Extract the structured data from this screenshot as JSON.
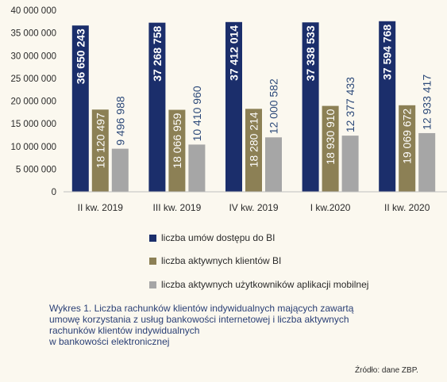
{
  "chart_data": {
    "type": "bar",
    "categories": [
      "II kw. 2019",
      "III kw. 2019",
      "IV kw. 2019",
      "I kw.2020",
      "II kw. 2020"
    ],
    "series": [
      {
        "name": "liczba umów dostępu do BI",
        "color": "#1b2e6b",
        "labelColor": "#ffffff",
        "values": [
          36650243,
          37268758,
          37412014,
          37338533,
          37594768
        ],
        "labels": [
          "36 650 243",
          "37 268 758",
          "37 412 014",
          "37 338 533",
          "37 594 768"
        ]
      },
      {
        "name": "liczba aktywnych klientów BI",
        "color": "#8c8055",
        "labelColor": "#ffffff",
        "values": [
          18120497,
          18066959,
          18280214,
          18930910,
          19069672
        ],
        "labels": [
          "18 120 497",
          "18 066 959",
          "18 280 214",
          "18 930 910",
          "19 069 672"
        ]
      },
      {
        "name": "liczba aktywnych użytkowników aplikacji mobilnej",
        "color": "#a6a6a6",
        "labelColor": "#2d4a7a",
        "values": [
          9496988,
          10410960,
          12000582,
          12377433,
          12933417
        ],
        "labels": [
          "9 496 988",
          "10 410 960",
          "12 000 582",
          "12 377 433",
          "12 933 417"
        ]
      }
    ],
    "ylim": [
      0,
      40000000
    ],
    "yticks": [
      0,
      5000000,
      10000000,
      15000000,
      20000000,
      25000000,
      30000000,
      35000000,
      40000000
    ],
    "ytick_labels": [
      "0",
      "5 000 000",
      "10 000 000",
      "15 000 000",
      "20 000 000",
      "25 000 000",
      "30 000 000",
      "35 000 000",
      "40 000 000"
    ],
    "grid": false,
    "legend_position": "below"
  },
  "caption": {
    "lines": [
      "Wykres 1. Liczba rachunków klientów indywidualnych mających zawartą",
      "umowę korzystania z usług bankowości internetowej  i liczba aktywnych",
      "rachunków klientów indywidualnych",
      "w bankowości elektronicznej"
    ]
  },
  "source": "Źródło: dane ZBP."
}
